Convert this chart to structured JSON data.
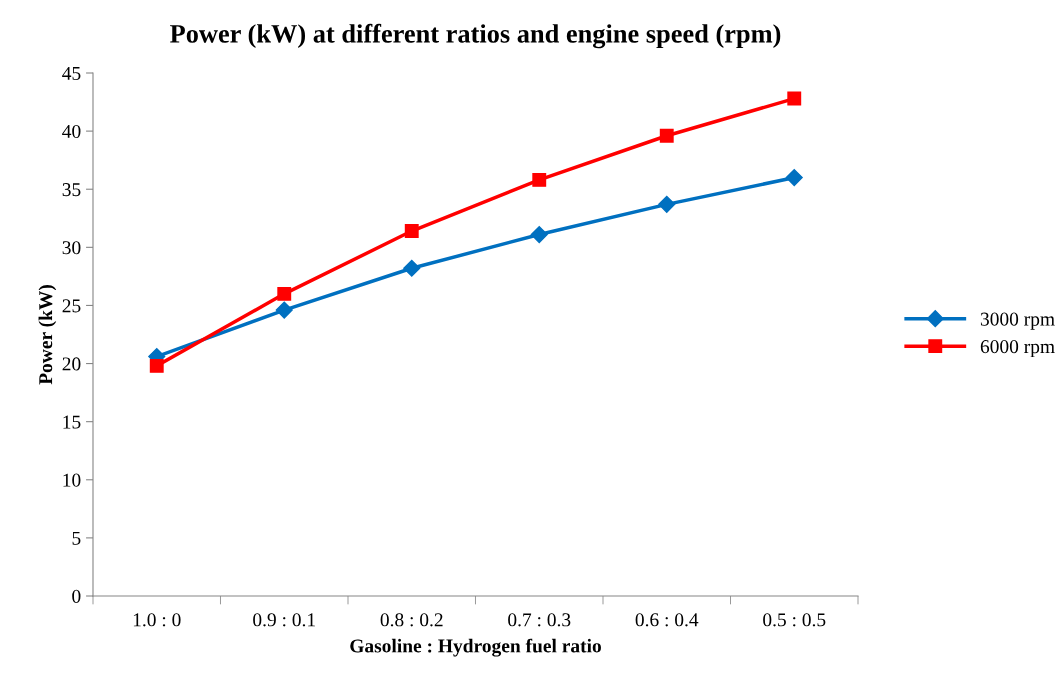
{
  "chart_data": {
    "type": "line",
    "title": "Power (kW) at different ratios and engine speed (rpm)",
    "xlabel": "Gasoline : Hydrogen fuel ratio",
    "ylabel": "Power (kW)",
    "categories": [
      "1.0 : 0",
      "0.9 : 0.1",
      "0.8 : 0.2",
      "0.7 : 0.3",
      "0.6 : 0.4",
      "0.5 : 0.5"
    ],
    "series": [
      {
        "name": "3000 rpm",
        "color": "#0070c0",
        "marker": "diamond",
        "values": [
          20.6,
          24.6,
          28.2,
          31.1,
          33.7,
          36.0
        ]
      },
      {
        "name": "6000 rpm",
        "color": "#ff0000",
        "marker": "square",
        "values": [
          19.8,
          26.0,
          31.4,
          35.8,
          39.6,
          42.8
        ]
      }
    ],
    "ylim": [
      0,
      45
    ],
    "yticks": [
      0,
      5,
      10,
      15,
      20,
      25,
      30,
      35,
      40,
      45
    ],
    "grid": false,
    "legend": "right",
    "line_style": "solid"
  }
}
